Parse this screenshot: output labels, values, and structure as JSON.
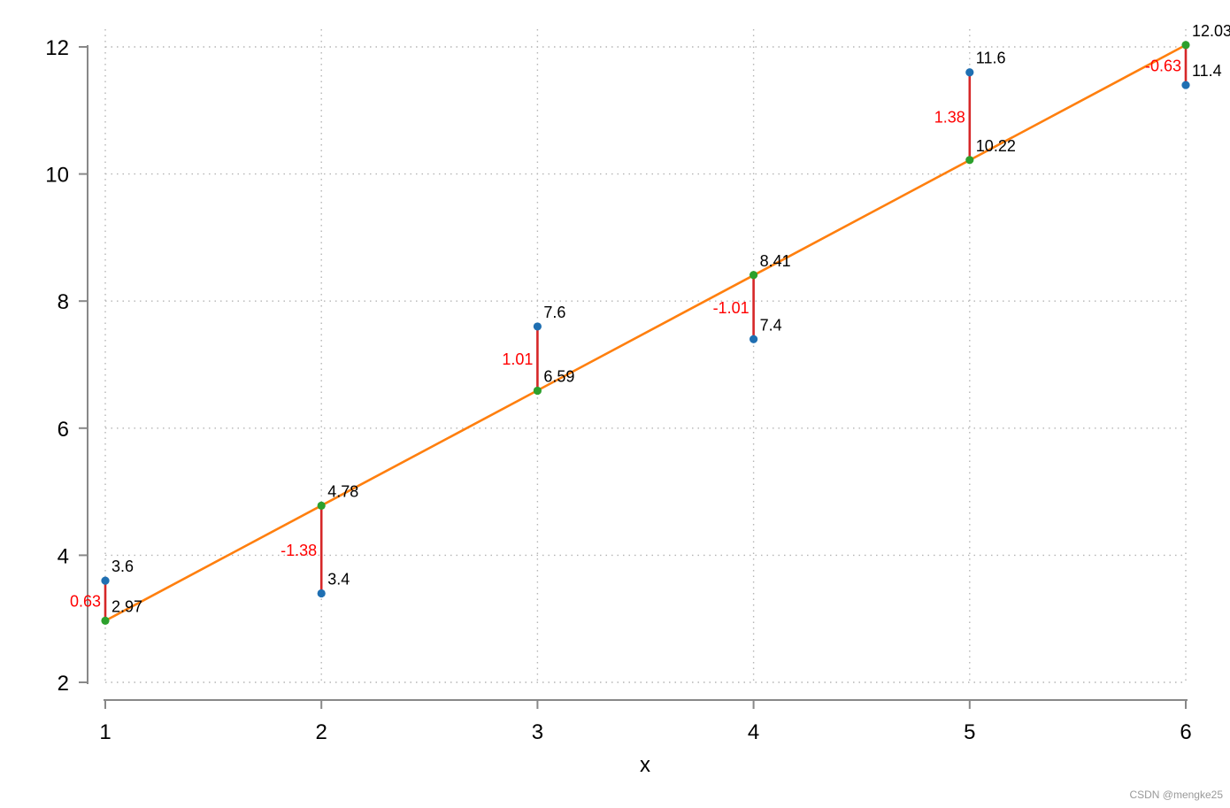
{
  "watermark": "CSDN @mengke25",
  "chart_data": {
    "type": "scatter",
    "xlabel": "x",
    "ylabel": "",
    "xlim": [
      1,
      6
    ],
    "ylim": [
      2,
      12
    ],
    "x_ticks": [
      1,
      2,
      3,
      4,
      5,
      6
    ],
    "y_ticks": [
      2,
      4,
      6,
      8,
      10,
      12
    ],
    "grid": true,
    "x": [
      1,
      2,
      3,
      4,
      5,
      6
    ],
    "observed": [
      3.6,
      3.4,
      7.6,
      7.4,
      11.6,
      11.4
    ],
    "fitted": [
      2.97,
      4.78,
      6.59,
      8.41,
      10.22,
      12.03
    ],
    "residuals": [
      0.63,
      -1.38,
      1.01,
      -1.01,
      1.38,
      -0.63
    ],
    "observed_labels": [
      "3.6",
      "3.4",
      "7.6",
      "7.4",
      "11.6",
      "11.4"
    ],
    "fitted_labels": [
      "2.97",
      "4.78",
      "6.59",
      "8.41",
      "10.22",
      "12.03"
    ],
    "residual_labels": [
      "0.63",
      "-1.38",
      "1.01",
      "-1.01",
      "1.38",
      "-0.63"
    ],
    "colors": {
      "observed": "#1f6fb2",
      "fitted": "#2ca02c",
      "line": "#ff7f0e",
      "residual": "#d62728",
      "residual_text": "#ff0000",
      "grid": "#b5b5b5",
      "axis": "#888888"
    }
  }
}
